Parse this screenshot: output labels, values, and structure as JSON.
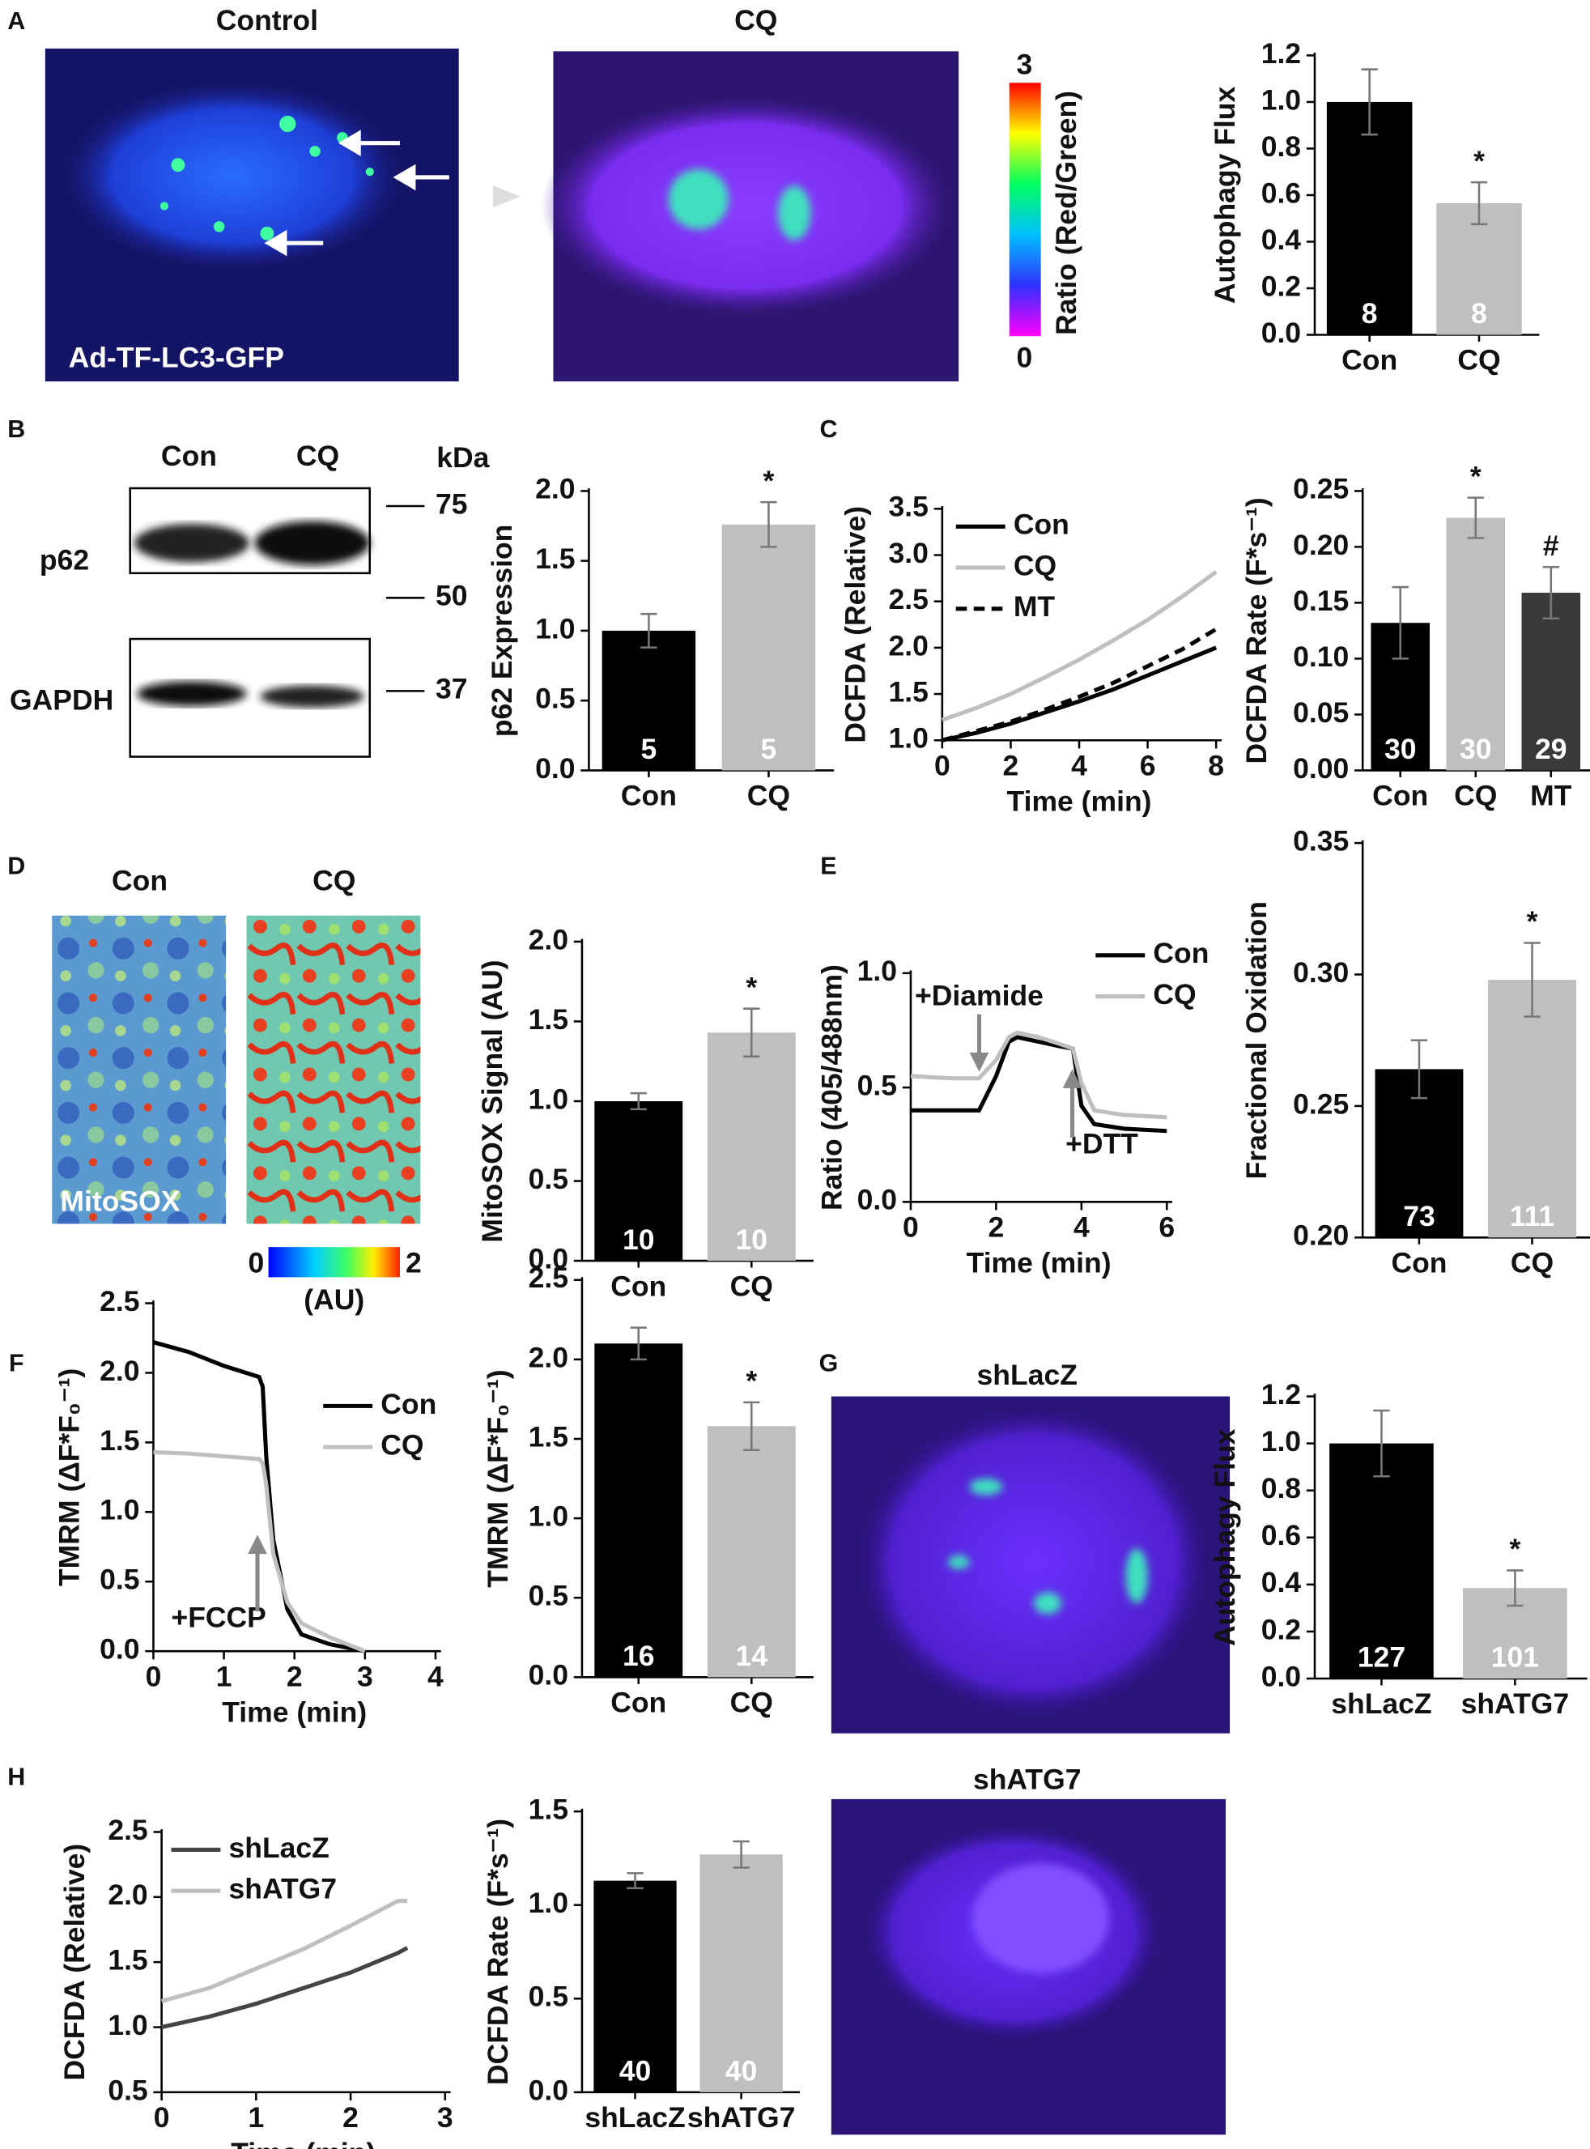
{
  "figure": {
    "panel_letters": [
      "A",
      "B",
      "C",
      "D",
      "E",
      "F",
      "G",
      "H"
    ],
    "image_titles": [
      "Control",
      "CQ",
      "Con",
      "CQ",
      "shLacZ",
      "shATG7"
    ],
    "image_captions": [
      "Ad-TF-LC3-GFP",
      "MitoSOX"
    ],
    "colorbar_A": {
      "max": 3,
      "min": 0,
      "label": "Ratio (Red/Green)"
    },
    "colorbar_D": {
      "min": 0,
      "max": 2,
      "label": "(AU)"
    },
    "blot": {
      "lanes": [
        "Con",
        "CQ"
      ],
      "unit": "kDa",
      "markers": [
        75,
        50,
        37
      ],
      "bands": [
        "p62",
        "GAPDH"
      ]
    }
  },
  "chart_data": [
    {
      "type": "bar",
      "ylabel": "Autophagy Flux",
      "categories": [
        "Con",
        "CQ"
      ],
      "values": [
        1.0,
        0.565
      ],
      "errors": [
        0.14,
        0.09
      ],
      "n": [
        8,
        8
      ],
      "significance": [
        null,
        "*"
      ],
      "colors": [
        "#000000",
        "#bfbfbf"
      ],
      "ylim": [
        0,
        1.2
      ],
      "yticks": [
        {
          "value": 0,
          "label": "0.0"
        },
        {
          "value": 0.2,
          "label": "0.2"
        },
        {
          "value": 0.4,
          "label": "0.4"
        },
        {
          "value": 0.6,
          "label": "0.6"
        },
        {
          "value": 0.8,
          "label": "0.8"
        },
        {
          "value": 1.0,
          "label": "1.0"
        },
        {
          "value": 1.2,
          "label": "1.2"
        }
      ]
    },
    {
      "type": "bar",
      "ylabel": "p62 Expression",
      "categories": [
        "Con",
        "CQ"
      ],
      "values": [
        1.0,
        1.76
      ],
      "errors": [
        0.12,
        0.16
      ],
      "n": [
        5,
        5
      ],
      "significance": [
        null,
        "*"
      ],
      "colors": [
        "#000000",
        "#bfbfbf"
      ],
      "ylim": [
        0,
        2.0
      ],
      "yticks": [
        {
          "value": 0,
          "label": "0.0"
        },
        {
          "value": 0.5,
          "label": "0.5"
        },
        {
          "value": 1.0,
          "label": "1.0"
        },
        {
          "value": 1.5,
          "label": "1.5"
        },
        {
          "value": 2.0,
          "label": "2.0"
        }
      ]
    },
    {
      "type": "line",
      "ylabel": "DCFDA (Relative)",
      "xlabel": "Time (min)",
      "x": [
        0,
        1,
        2,
        3,
        4,
        5,
        6,
        7,
        8
      ],
      "series": [
        {
          "name": "Con",
          "color": "#000000",
          "dash": false,
          "values": [
            1.0,
            1.08,
            1.18,
            1.3,
            1.42,
            1.55,
            1.7,
            1.85,
            2.0
          ]
        },
        {
          "name": "CQ",
          "color": "#bfbfbf",
          "dash": false,
          "values": [
            1.22,
            1.35,
            1.5,
            1.68,
            1.87,
            2.08,
            2.3,
            2.55,
            2.82
          ]
        },
        {
          "name": "MT",
          "color": "#000000",
          "dash": true,
          "values": [
            1.0,
            1.1,
            1.2,
            1.33,
            1.47,
            1.62,
            1.8,
            1.98,
            2.2
          ]
        }
      ],
      "xlim": [
        0,
        8
      ],
      "xticks": [
        0,
        2,
        4,
        6,
        8
      ],
      "ylim": [
        1.0,
        3.5
      ],
      "yticks": [
        {
          "value": 1.0,
          "label": "1.0"
        },
        {
          "value": 1.5,
          "label": "1.5"
        },
        {
          "value": 2.0,
          "label": "2.0"
        },
        {
          "value": 2.5,
          "label": "2.5"
        },
        {
          "value": 3.0,
          "label": "3.0"
        },
        {
          "value": 3.5,
          "label": "3.5"
        }
      ]
    },
    {
      "type": "bar",
      "ylabel": "DCFDA Rate (F*s⁻¹)",
      "categories": [
        "Con",
        "CQ",
        "MT"
      ],
      "values": [
        0.132,
        0.226,
        0.159
      ],
      "errors": [
        0.032,
        0.018,
        0.023
      ],
      "n": [
        30,
        30,
        29
      ],
      "significance": [
        null,
        "*",
        "#"
      ],
      "colors": [
        "#000000",
        "#bfbfbf",
        "#3a3a3a"
      ],
      "ylim": [
        0,
        0.25
      ],
      "yticks": [
        {
          "value": 0,
          "label": "0.00"
        },
        {
          "value": 0.05,
          "label": "0.05"
        },
        {
          "value": 0.1,
          "label": "0.10"
        },
        {
          "value": 0.15,
          "label": "0.15"
        },
        {
          "value": 0.2,
          "label": "0.20"
        },
        {
          "value": 0.25,
          "label": "0.25"
        }
      ]
    },
    {
      "type": "bar",
      "ylabel": "MitoSOX Signal (AU)",
      "categories": [
        "Con",
        "CQ"
      ],
      "values": [
        1.0,
        1.43
      ],
      "errors": [
        0.05,
        0.15
      ],
      "n": [
        10,
        10
      ],
      "significance": [
        null,
        "*"
      ],
      "colors": [
        "#000000",
        "#bfbfbf"
      ],
      "ylim": [
        0,
        2.0
      ],
      "yticks": [
        {
          "value": 0,
          "label": "0.0"
        },
        {
          "value": 0.5,
          "label": "0.5"
        },
        {
          "value": 1.0,
          "label": "1.0"
        },
        {
          "value": 1.5,
          "label": "1.5"
        },
        {
          "value": 2.0,
          "label": "2.0"
        }
      ]
    },
    {
      "type": "line",
      "ylabel": "Ratio (405/488nm)",
      "xlabel": "Time (min)",
      "x": [
        0,
        1,
        1.6,
        2.0,
        2.3,
        2.5,
        3.0,
        3.5,
        3.8,
        4.0,
        4.3,
        5,
        6
      ],
      "series": [
        {
          "name": "Con",
          "color": "#000000",
          "dash": false,
          "values": [
            0.4,
            0.4,
            0.4,
            0.55,
            0.7,
            0.72,
            0.7,
            0.68,
            0.67,
            0.42,
            0.34,
            0.32,
            0.31
          ]
        },
        {
          "name": "CQ",
          "color": "#bfbfbf",
          "dash": false,
          "values": [
            0.55,
            0.54,
            0.54,
            0.62,
            0.72,
            0.74,
            0.72,
            0.69,
            0.67,
            0.52,
            0.4,
            0.38,
            0.37
          ]
        }
      ],
      "annotations": [
        "+Diamide",
        "+DTT"
      ],
      "xlim": [
        0,
        6
      ],
      "xticks": [
        0,
        2,
        4,
        6
      ],
      "ylim": [
        0,
        1.0
      ],
      "yticks": [
        {
          "value": 0,
          "label": "0.0"
        },
        {
          "value": 0.5,
          "label": "0.5"
        },
        {
          "value": 1.0,
          "label": "1.0"
        }
      ]
    },
    {
      "type": "bar",
      "ylabel": "Fractional Oxidation",
      "categories": [
        "Con",
        "CQ"
      ],
      "values": [
        0.264,
        0.298
      ],
      "errors": [
        0.011,
        0.014
      ],
      "n": [
        73,
        111
      ],
      "significance": [
        null,
        "*"
      ],
      "colors": [
        "#000000",
        "#bfbfbf"
      ],
      "ylim": [
        0.2,
        0.35
      ],
      "yticks": [
        {
          "value": 0.2,
          "label": "0.20"
        },
        {
          "value": 0.25,
          "label": "0.25"
        },
        {
          "value": 0.3,
          "label": "0.30"
        },
        {
          "value": 0.35,
          "label": "0.35"
        }
      ]
    },
    {
      "type": "line",
      "ylabel": "TMRM (ΔF*F₀⁻¹)",
      "xlabel": "Time (min)",
      "x": [
        0,
        0.5,
        1,
        1.5,
        1.55,
        1.6,
        1.7,
        1.9,
        2.1,
        2.5,
        3
      ],
      "series": [
        {
          "name": "Con",
          "color": "#000000",
          "dash": false,
          "values": [
            2.22,
            2.15,
            2.05,
            1.97,
            1.9,
            1.4,
            0.8,
            0.3,
            0.12,
            0.05,
            0.0
          ]
        },
        {
          "name": "CQ",
          "color": "#bfbfbf",
          "dash": false,
          "values": [
            1.43,
            1.42,
            1.4,
            1.38,
            1.35,
            1.2,
            0.7,
            0.35,
            0.2,
            0.1,
            0.0
          ]
        }
      ],
      "annotations": [
        "+FCCP"
      ],
      "xlim": [
        0,
        4
      ],
      "xticks": [
        0,
        1,
        2,
        3,
        4
      ],
      "ylim": [
        0,
        2.5
      ],
      "yticks": [
        {
          "value": 0,
          "label": "0.0"
        },
        {
          "value": 0.5,
          "label": "0.5"
        },
        {
          "value": 1.0,
          "label": "1.0"
        },
        {
          "value": 1.5,
          "label": "1.5"
        },
        {
          "value": 2.0,
          "label": "2.0"
        },
        {
          "value": 2.5,
          "label": "2.5"
        }
      ]
    },
    {
      "type": "bar",
      "ylabel": "TMRM (ΔF*F₀⁻¹)",
      "categories": [
        "Con",
        "CQ"
      ],
      "values": [
        2.1,
        1.58
      ],
      "errors": [
        0.1,
        0.15
      ],
      "n": [
        16,
        14
      ],
      "significance": [
        null,
        "*"
      ],
      "colors": [
        "#000000",
        "#bfbfbf"
      ],
      "ylim": [
        0,
        2.5
      ],
      "yticks": [
        {
          "value": 0,
          "label": "0.0"
        },
        {
          "value": 0.5,
          "label": "0.5"
        },
        {
          "value": 1.0,
          "label": "1.0"
        },
        {
          "value": 1.5,
          "label": "1.5"
        },
        {
          "value": 2.0,
          "label": "2.0"
        },
        {
          "value": 2.5,
          "label": "2.5"
        }
      ]
    },
    {
      "type": "bar",
      "ylabel": "Autophagy Flux",
      "categories": [
        "shLacZ",
        "shATG7"
      ],
      "values": [
        1.0,
        0.385
      ],
      "errors": [
        0.14,
        0.075
      ],
      "n": [
        127,
        101
      ],
      "significance": [
        null,
        "*"
      ],
      "colors": [
        "#000000",
        "#bfbfbf"
      ],
      "ylim": [
        0,
        1.2
      ],
      "yticks": [
        {
          "value": 0,
          "label": "0.0"
        },
        {
          "value": 0.2,
          "label": "0.2"
        },
        {
          "value": 0.4,
          "label": "0.4"
        },
        {
          "value": 0.6,
          "label": "0.6"
        },
        {
          "value": 0.8,
          "label": "0.8"
        },
        {
          "value": 1.0,
          "label": "1.0"
        },
        {
          "value": 1.2,
          "label": "1.2"
        }
      ]
    },
    {
      "type": "line",
      "ylabel": "DCFDA (Relative)",
      "xlabel": "Time (min)",
      "x": [
        0,
        0.5,
        1,
        1.5,
        2,
        2.5,
        2.6
      ],
      "series": [
        {
          "name": "shLacZ",
          "color": "#444444",
          "dash": false,
          "values": [
            1.0,
            1.08,
            1.18,
            1.3,
            1.42,
            1.57,
            1.61
          ]
        },
        {
          "name": "shATG7",
          "color": "#bfbfbf",
          "dash": false,
          "values": [
            1.2,
            1.3,
            1.45,
            1.6,
            1.78,
            1.97,
            1.97
          ]
        }
      ],
      "xlim": [
        0,
        3
      ],
      "xticks": [
        0,
        1,
        2,
        3
      ],
      "ylim": [
        0.5,
        2.5
      ],
      "yticks": [
        {
          "value": 0.5,
          "label": "0.5"
        },
        {
          "value": 1.0,
          "label": "1.0"
        },
        {
          "value": 1.5,
          "label": "1.5"
        },
        {
          "value": 2.0,
          "label": "2.0"
        },
        {
          "value": 2.5,
          "label": "2.5"
        }
      ]
    },
    {
      "type": "bar",
      "ylabel": "DCFDA Rate (F*s⁻¹)",
      "categories": [
        "shLacZ",
        "shATG7"
      ],
      "values": [
        1.13,
        1.27
      ],
      "errors": [
        0.04,
        0.07
      ],
      "n": [
        40,
        40
      ],
      "significance": [
        null,
        null
      ],
      "colors": [
        "#000000",
        "#bfbfbf"
      ],
      "ylim": [
        0,
        1.5
      ],
      "yticks": [
        {
          "value": 0,
          "label": "0.0"
        },
        {
          "value": 0.5,
          "label": "0.5"
        },
        {
          "value": 1.0,
          "label": "1.0"
        },
        {
          "value": 1.5,
          "label": "1.5"
        }
      ]
    }
  ]
}
